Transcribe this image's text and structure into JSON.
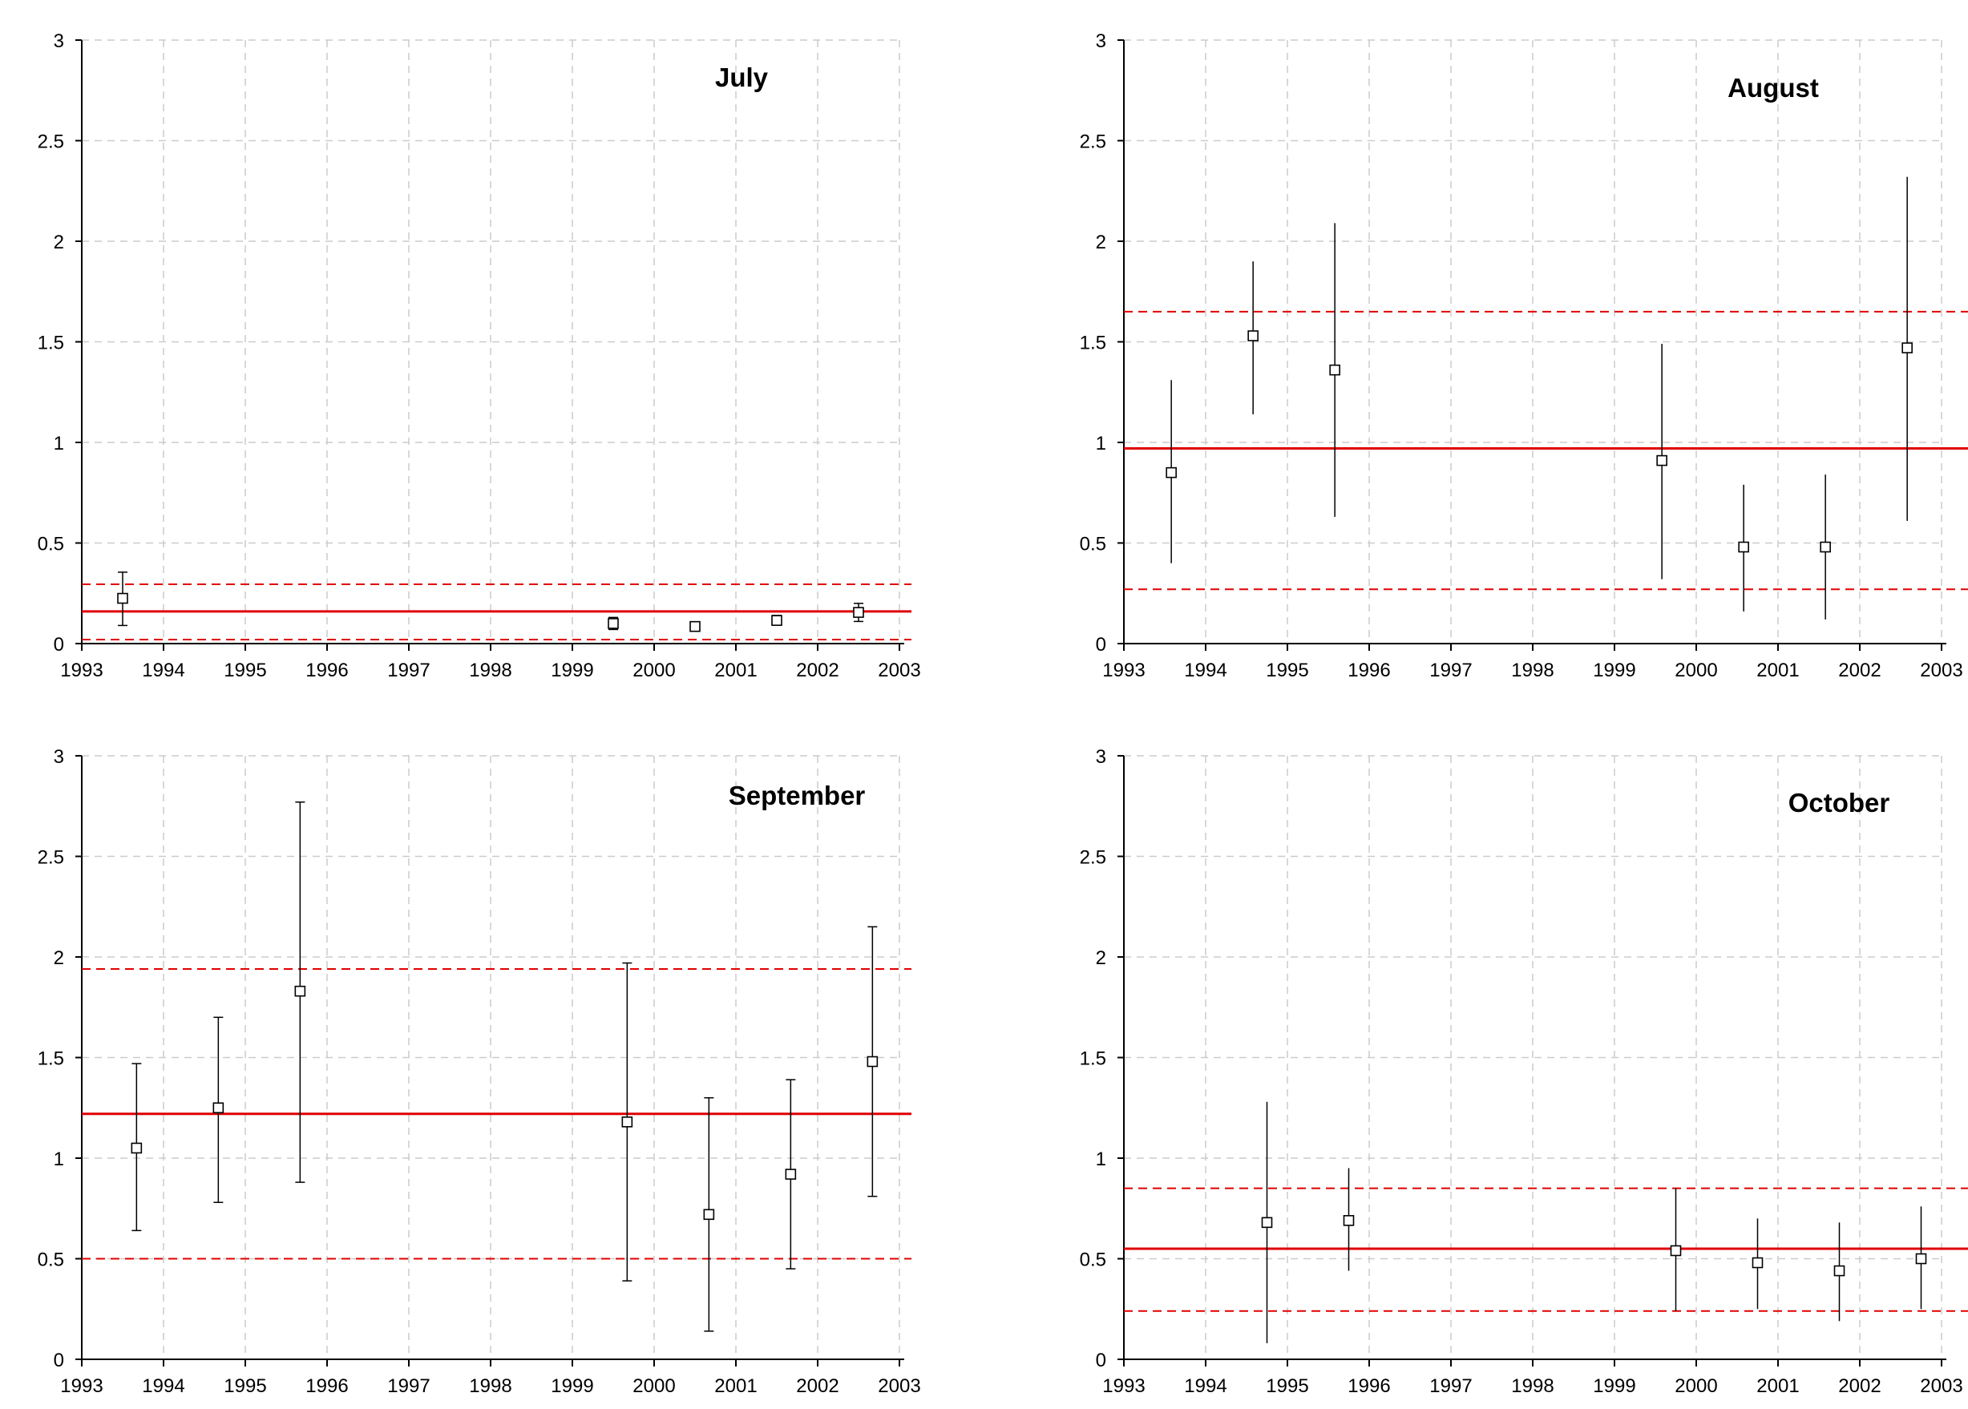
{
  "style": {
    "grid_color": "#cccccc",
    "axis_color": "#000000",
    "mean_line_color": "#e00000",
    "marker_color": "#000000"
  },
  "chart_data": [
    {
      "type": "scatter",
      "title": "July",
      "xlim": [
        1993,
        2003
      ],
      "ylim": [
        0,
        3
      ],
      "x_ticks": [
        1993,
        1994,
        1995,
        1996,
        1997,
        1998,
        1999,
        2000,
        2001,
        2002,
        2003
      ],
      "y_ticks": [
        0,
        0.5,
        1,
        1.5,
        2,
        2.5,
        3
      ],
      "y_tick_labels": [
        "0",
        "0.5",
        "1",
        "1.5",
        "2",
        "2.5",
        "3"
      ],
      "grid": true,
      "mean": 0.16,
      "band": [
        0.02,
        0.295
      ],
      "points": [
        {
          "x": 1993.5,
          "y": 0.225,
          "low": 0.09,
          "high": 0.355,
          "caps": true
        },
        {
          "x": 1999.5,
          "y": 0.1,
          "low": 0.07,
          "high": 0.13,
          "caps": true
        },
        {
          "x": 2000.5,
          "y": 0.085,
          "low": 0.065,
          "high": 0.105,
          "caps": true
        },
        {
          "x": 2001.5,
          "y": 0.115,
          "low": 0.095,
          "high": 0.14,
          "caps": true
        },
        {
          "x": 2002.5,
          "y": 0.155,
          "low": 0.11,
          "high": 0.2,
          "caps": true
        }
      ]
    },
    {
      "type": "scatter",
      "title": "August",
      "xlim": [
        1993,
        2003
      ],
      "ylim": [
        0,
        3
      ],
      "x_ticks": [
        1993,
        1994,
        1995,
        1996,
        1997,
        1998,
        1999,
        2000,
        2001,
        2002,
        2003
      ],
      "y_ticks": [
        0,
        0.5,
        1,
        1.5,
        2,
        2.5,
        3
      ],
      "y_tick_labels": [
        "0",
        "0.5",
        "1",
        "1.5",
        "2",
        "2.5",
        "3"
      ],
      "grid": true,
      "mean": 0.97,
      "band": [
        0.27,
        1.65
      ],
      "points": [
        {
          "x": 1993.58,
          "y": 0.85,
          "low": 0.4,
          "high": 1.31,
          "caps": false
        },
        {
          "x": 1994.58,
          "y": 1.53,
          "low": 1.14,
          "high": 1.9,
          "caps": false
        },
        {
          "x": 1995.58,
          "y": 1.36,
          "low": 0.63,
          "high": 2.09,
          "caps": false
        },
        {
          "x": 1999.58,
          "y": 0.91,
          "low": 0.32,
          "high": 1.49,
          "caps": false
        },
        {
          "x": 2000.58,
          "y": 0.48,
          "low": 0.16,
          "high": 0.79,
          "caps": false
        },
        {
          "x": 2001.58,
          "y": 0.48,
          "low": 0.12,
          "high": 0.84,
          "caps": false
        },
        {
          "x": 2002.58,
          "y": 1.47,
          "low": 0.61,
          "high": 2.32,
          "caps": false
        }
      ]
    },
    {
      "type": "scatter",
      "title": "September",
      "xlim": [
        1993,
        2003
      ],
      "ylim": [
        0,
        3
      ],
      "x_ticks": [
        1993,
        1994,
        1995,
        1996,
        1997,
        1998,
        1999,
        2000,
        2001,
        2002,
        2003
      ],
      "y_ticks": [
        0,
        0.5,
        1,
        1.5,
        2,
        2.5,
        3
      ],
      "y_tick_labels": [
        "0",
        "0.5",
        "1",
        "1.5",
        "2",
        "2.5",
        "3"
      ],
      "grid": true,
      "mean": 1.22,
      "band": [
        0.5,
        1.94
      ],
      "points": [
        {
          "x": 1993.67,
          "y": 1.05,
          "low": 0.64,
          "high": 1.47,
          "caps": true
        },
        {
          "x": 1994.67,
          "y": 1.25,
          "low": 0.78,
          "high": 1.7,
          "caps": true
        },
        {
          "x": 1995.67,
          "y": 1.83,
          "low": 0.88,
          "high": 2.77,
          "caps": true
        },
        {
          "x": 1999.67,
          "y": 1.18,
          "low": 0.39,
          "high": 1.97,
          "caps": true
        },
        {
          "x": 2000.67,
          "y": 0.72,
          "low": 0.14,
          "high": 1.3,
          "caps": true
        },
        {
          "x": 2001.67,
          "y": 0.92,
          "low": 0.45,
          "high": 1.39,
          "caps": true
        },
        {
          "x": 2002.67,
          "y": 1.48,
          "low": 0.81,
          "high": 2.15,
          "caps": true
        }
      ]
    },
    {
      "type": "scatter",
      "title": "October",
      "xlim": [
        1993,
        2003
      ],
      "ylim": [
        0,
        3
      ],
      "x_ticks": [
        1993,
        1994,
        1995,
        1996,
        1997,
        1998,
        1999,
        2000,
        2001,
        2002,
        2003
      ],
      "y_ticks": [
        0,
        0.5,
        1,
        1.5,
        2,
        2.5,
        3
      ],
      "y_tick_labels": [
        "0",
        "0.5",
        "1",
        "1.5",
        "2",
        "2.5",
        "3"
      ],
      "grid": true,
      "mean": 0.55,
      "band": [
        0.24,
        0.85
      ],
      "points": [
        {
          "x": 1994.75,
          "y": 0.68,
          "low": 0.08,
          "high": 1.28,
          "caps": false
        },
        {
          "x": 1995.75,
          "y": 0.69,
          "low": 0.44,
          "high": 0.95,
          "caps": false
        },
        {
          "x": 1999.75,
          "y": 0.54,
          "low": 0.24,
          "high": 0.85,
          "caps": false
        },
        {
          "x": 2000.75,
          "y": 0.48,
          "low": 0.25,
          "high": 0.7,
          "caps": false
        },
        {
          "x": 2001.75,
          "y": 0.44,
          "low": 0.19,
          "high": 0.68,
          "caps": false
        },
        {
          "x": 2002.75,
          "y": 0.5,
          "low": 0.25,
          "high": 0.76,
          "caps": false
        }
      ]
    }
  ]
}
